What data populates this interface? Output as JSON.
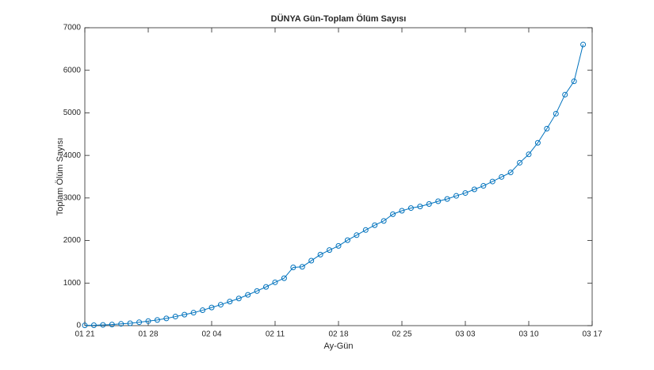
{
  "chart_data": {
    "type": "line",
    "title": "DÜNYA Gün-Toplam Ölüm Sayısı",
    "xlabel": "Ay-Gün",
    "ylabel": "Toplam Ölüm Sayısı",
    "x": [
      "01 21",
      "01 22",
      "01 23",
      "01 24",
      "01 25",
      "01 26",
      "01 27",
      "01 28",
      "01 29",
      "01 30",
      "01 31",
      "02 01",
      "02 02",
      "02 03",
      "02 04",
      "02 05",
      "02 06",
      "02 07",
      "02 08",
      "02 09",
      "02 10",
      "02 11",
      "02 12",
      "02 13",
      "02 14",
      "02 15",
      "02 16",
      "02 17",
      "02 18",
      "02 19",
      "02 20",
      "02 21",
      "02 22",
      "02 23",
      "02 24",
      "02 25",
      "02 26",
      "02 27",
      "02 28",
      "02 29",
      "03 01",
      "03 02",
      "03 03",
      "03 04",
      "03 05",
      "03 06",
      "03 07",
      "03 08",
      "03 09",
      "03 10",
      "03 11",
      "03 12",
      "03 13",
      "03 14",
      "03 15",
      "03 16"
    ],
    "series": [
      {
        "name": "Toplam Ölüm Sayısı",
        "color": "#0072bd",
        "values": [
          6,
          9,
          17,
          25,
          41,
          56,
          80,
          106,
          132,
          170,
          213,
          259,
          304,
          362,
          426,
          492,
          565,
          638,
          724,
          813,
          910,
          1018,
          1115,
          1369,
          1383,
          1526,
          1669,
          1775,
          1873,
          2009,
          2126,
          2247,
          2360,
          2460,
          2618,
          2699,
          2763,
          2800,
          2858,
          2923,
          2977,
          3050,
          3117,
          3202,
          3285,
          3387,
          3494,
          3599,
          3827,
          4025,
          4296,
          4628,
          4981,
          5428,
          5740,
          6606
        ]
      }
    ],
    "xlim": [
      "01 21",
      "03 17"
    ],
    "xticks": [
      "01 21",
      "01 28",
      "02 04",
      "02 11",
      "02 18",
      "02 25",
      "03 03",
      "03 10",
      "03 17"
    ],
    "ylim": [
      0,
      7000
    ],
    "yticks": [
      0,
      1000,
      2000,
      3000,
      4000,
      5000,
      6000,
      7000
    ],
    "grid": false
  }
}
